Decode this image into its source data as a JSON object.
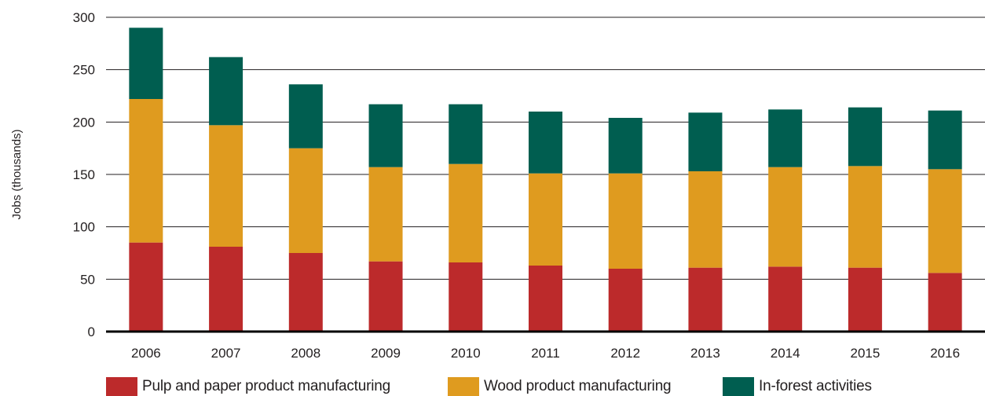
{
  "chart_data": {
    "type": "bar",
    "stacked": true,
    "title": "",
    "xlabel": "",
    "ylabel": "Jobs (thousands)",
    "ylim": [
      0,
      300
    ],
    "yticks": [
      0,
      50,
      100,
      150,
      200,
      250,
      300
    ],
    "grid": true,
    "legend_position": "bottom",
    "categories": [
      "2006",
      "2007",
      "2008",
      "2009",
      "2010",
      "2011",
      "2012",
      "2013",
      "2014",
      "2015",
      "2016"
    ],
    "series": [
      {
        "name": "Pulp and paper product manufacturing",
        "color": "#bc2a2b",
        "values": [
          85,
          81,
          75,
          67,
          66,
          63,
          60,
          61,
          62,
          61,
          56
        ]
      },
      {
        "name": "Wood product manufacturing",
        "color": "#df9b1f",
        "values": [
          137,
          116,
          100,
          90,
          94,
          88,
          91,
          92,
          95,
          97,
          99
        ]
      },
      {
        "name": "In-forest activities",
        "color": "#005e50",
        "values": [
          68,
          65,
          61,
          60,
          57,
          59,
          53,
          56,
          55,
          56,
          56
        ]
      }
    ]
  }
}
